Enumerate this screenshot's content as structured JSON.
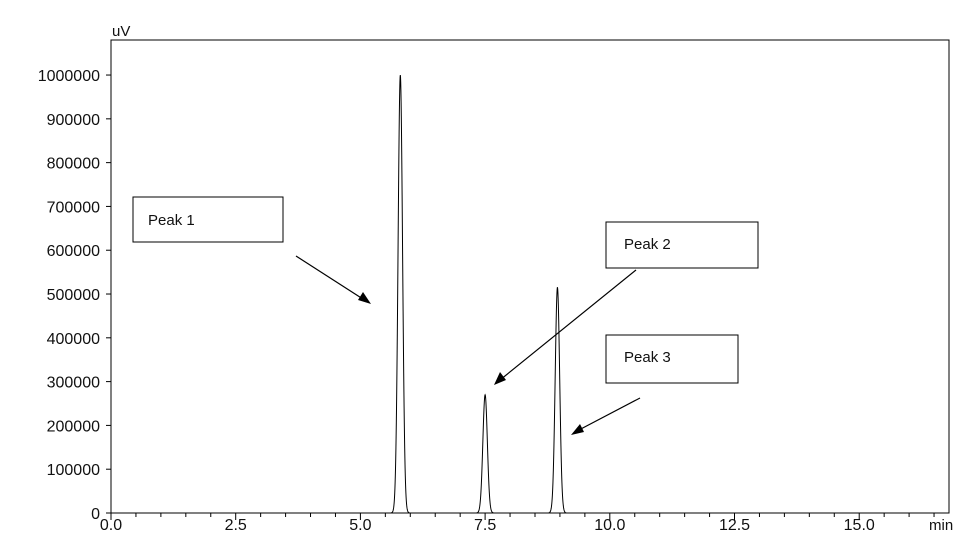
{
  "chart_data": {
    "type": "line",
    "ylabel": "uV",
    "xlabel": "min",
    "xlim": [
      0.0,
      16.8
    ],
    "ylim": [
      0,
      1080000
    ],
    "x_ticks": [
      {
        "value": 0.0,
        "label": "0.0"
      },
      {
        "value": 2.5,
        "label": "2.5"
      },
      {
        "value": 5.0,
        "label": "5.0"
      },
      {
        "value": 7.5,
        "label": "7.5"
      },
      {
        "value": 10.0,
        "label": "10.0"
      },
      {
        "value": 12.5,
        "label": "12.5"
      },
      {
        "value": 15.0,
        "label": "15.0"
      }
    ],
    "y_ticks": [
      {
        "value": 0,
        "label": "0"
      },
      {
        "value": 100000,
        "label": "100000"
      },
      {
        "value": 200000,
        "label": "200000"
      },
      {
        "value": 300000,
        "label": "300000"
      },
      {
        "value": 400000,
        "label": "400000"
      },
      {
        "value": 500000,
        "label": "500000"
      },
      {
        "value": 600000,
        "label": "600000"
      },
      {
        "value": 700000,
        "label": "700000"
      },
      {
        "value": 800000,
        "label": "800000"
      },
      {
        "value": 900000,
        "label": "900000"
      },
      {
        "value": 1000000,
        "label": "1000000"
      }
    ],
    "peaks": [
      {
        "label": "Peak 1",
        "retention_time": 5.8,
        "height": 1000000
      },
      {
        "label": "Peak 2",
        "retention_time": 7.5,
        "height": 270000
      },
      {
        "label": "Peak 3",
        "retention_time": 8.95,
        "height": 515000
      }
    ],
    "grid": false,
    "colors": {
      "trace": "#000000",
      "axis": "#000000"
    }
  }
}
